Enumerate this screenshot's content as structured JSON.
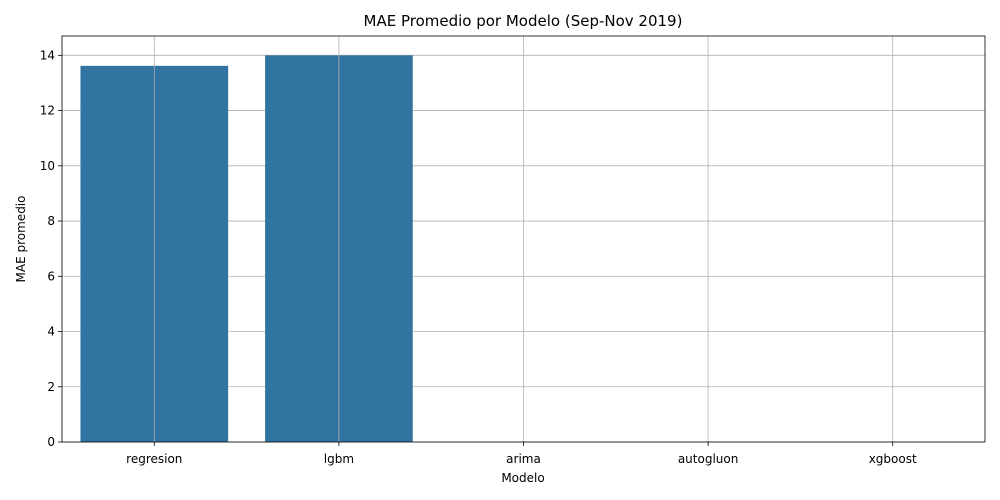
{
  "chart_data": {
    "type": "bar",
    "title": "MAE Promedio por Modelo (Sep-Nov 2019)",
    "xlabel": "Modelo",
    "ylabel": "MAE promedio",
    "categories": [
      "regresion",
      "lgbm",
      "arima",
      "autogluon",
      "xgboost"
    ],
    "values": [
      13.62,
      14.0,
      0,
      0,
      0
    ],
    "ylim": [
      0,
      14.7
    ],
    "yticks": [
      0,
      2,
      4,
      6,
      8,
      10,
      12,
      14
    ],
    "grid": true,
    "bar_color": "#3274a1"
  }
}
